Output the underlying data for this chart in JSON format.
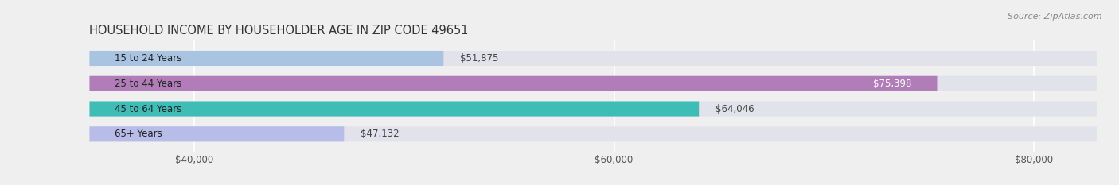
{
  "title": "HOUSEHOLD INCOME BY HOUSEHOLDER AGE IN ZIP CODE 49651",
  "source_text": "Source: ZipAtlas.com",
  "categories": [
    "15 to 24 Years",
    "25 to 44 Years",
    "45 to 64 Years",
    "65+ Years"
  ],
  "values": [
    51875,
    75398,
    64046,
    47132
  ],
  "bar_colors": [
    "#a8c4e0",
    "#b07db8",
    "#3dbdb5",
    "#b8bce8"
  ],
  "bar_labels": [
    "$51,875",
    "$75,398",
    "$64,046",
    "$47,132"
  ],
  "xlim": [
    35000,
    83000
  ],
  "xticks": [
    40000,
    60000,
    80000
  ],
  "xtick_labels": [
    "$40,000",
    "$60,000",
    "$80,000"
  ],
  "background_color": "#efefef",
  "bar_background_color": "#e2e2ea",
  "title_fontsize": 10.5,
  "label_fontsize": 8.5,
  "tick_fontsize": 8.5,
  "source_fontsize": 8.0
}
